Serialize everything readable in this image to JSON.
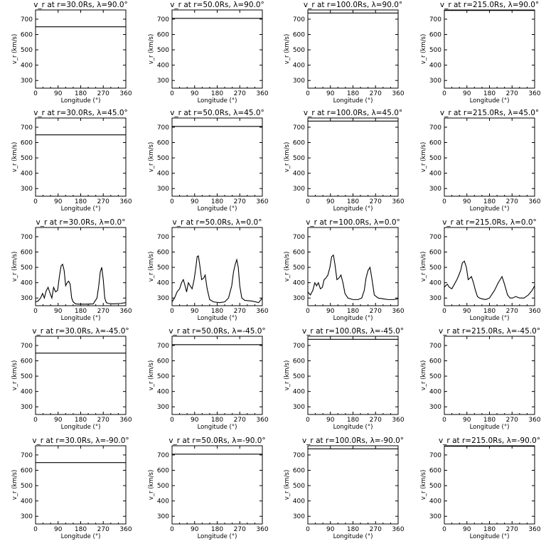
{
  "chart_data": {
    "type": "line",
    "layout": "small-multiples",
    "rows": 5,
    "cols": 4,
    "xlim": [
      0,
      360
    ],
    "ylim": [
      250,
      760
    ],
    "xticks": [
      0,
      90,
      180,
      270,
      360
    ],
    "yticks": [
      300,
      400,
      500,
      600,
      700
    ],
    "xlabel": "Longitude (°)",
    "ylabel": "v_r (km/s)",
    "grid": false,
    "radii": [
      "30.0",
      "50.0",
      "100.0",
      "215.0"
    ],
    "latitudes": [
      "90.0",
      "45.0",
      "0.0",
      "-45.0",
      "-90.0"
    ],
    "panels": [
      {
        "title": "v_r at r=30.0Rs,  λ=90.0°",
        "x": [
          0,
          360
        ],
        "y": [
          650,
          650
        ]
      },
      {
        "title": "v_r at r=50.0Rs,  λ=90.0°",
        "x": [
          0,
          360
        ],
        "y": [
          705,
          705
        ]
      },
      {
        "title": "v_r at r=100.0Rs,  λ=90.0°",
        "x": [
          0,
          360
        ],
        "y": [
          740,
          740
        ]
      },
      {
        "title": "v_r at r=215.0Rs,  λ=90.0°",
        "x": [
          0,
          360
        ],
        "y": [
          757,
          757
        ]
      },
      {
        "title": "v_r at r=30.0Rs,  λ=45.0°",
        "x": [
          0,
          360
        ],
        "y": [
          650,
          650
        ]
      },
      {
        "title": "v_r at r=50.0Rs,  λ=45.0°",
        "x": [
          0,
          360
        ],
        "y": [
          705,
          705
        ]
      },
      {
        "title": "v_r at r=100.0Rs,  λ=45.0°",
        "x": [
          0,
          360
        ],
        "y": [
          740,
          740
        ]
      },
      {
        "title": "v_r at r=215.0Rs,  λ=45.0°",
        "x": [],
        "y": []
      },
      {
        "title": "v_r at r=30.0Rs,  λ=0.0°",
        "x": [
          0,
          10,
          20,
          28,
          35,
          42,
          50,
          58,
          65,
          72,
          80,
          88,
          95,
          102,
          108,
          114,
          120,
          126,
          132,
          138,
          144,
          150,
          160,
          175,
          200,
          230,
          245,
          252,
          258,
          264,
          270,
          276,
          282,
          290,
          310,
          340,
          360
        ],
        "y": [
          275,
          280,
          300,
          330,
          300,
          345,
          370,
          330,
          300,
          370,
          340,
          350,
          440,
          510,
          520,
          480,
          380,
          400,
          410,
          390,
          300,
          275,
          262,
          260,
          260,
          262,
          300,
          380,
          470,
          500,
          420,
          300,
          270,
          265,
          262,
          265,
          270
        ]
      },
      {
        "title": "v_r at r=50.0Rs,  λ=0.0°",
        "x": [
          0,
          10,
          20,
          30,
          38,
          45,
          52,
          58,
          65,
          72,
          80,
          88,
          95,
          100,
          105,
          110,
          118,
          126,
          132,
          140,
          150,
          165,
          190,
          210,
          225,
          238,
          245,
          252,
          258,
          264,
          270,
          278,
          290,
          320,
          345,
          360
        ],
        "y": [
          275,
          300,
          340,
          360,
          400,
          420,
          380,
          340,
          400,
          380,
          360,
          420,
          500,
          570,
          575,
          520,
          420,
          430,
          450,
          360,
          290,
          275,
          270,
          275,
          300,
          380,
          470,
          520,
          550,
          500,
          380,
          300,
          285,
          280,
          270,
          300
        ]
      },
      {
        "title": "v_r at r=100.0Rs,  λ=0.0°",
        "x": [
          0,
          5,
          10,
          20,
          28,
          35,
          42,
          50,
          58,
          65,
          72,
          80,
          88,
          95,
          102,
          108,
          116,
          124,
          132,
          140,
          148,
          160,
          180,
          200,
          215,
          225,
          232,
          240,
          248,
          256,
          265,
          280,
          300,
          320,
          340,
          360
        ],
        "y": [
          340,
          330,
          320,
          350,
          400,
          380,
          400,
          360,
          370,
          420,
          430,
          450,
          500,
          570,
          580,
          520,
          420,
          430,
          450,
          400,
          330,
          300,
          290,
          290,
          300,
          350,
          430,
          480,
          500,
          420,
          320,
          300,
          295,
          290,
          290,
          295
        ]
      },
      {
        "title": "v_r at r=215.0Rs,  λ=0.0°",
        "x": [
          0,
          5,
          12,
          20,
          30,
          40,
          50,
          58,
          65,
          72,
          80,
          88,
          95,
          102,
          108,
          116,
          124,
          132,
          140,
          150,
          165,
          180,
          200,
          215,
          230,
          240,
          252,
          262,
          272,
          285,
          300,
          318,
          335,
          350,
          360
        ],
        "y": [
          370,
          380,
          390,
          370,
          360,
          390,
          420,
          450,
          480,
          530,
          540,
          500,
          420,
          430,
          440,
          400,
          350,
          310,
          300,
          295,
          290,
          300,
          350,
          400,
          440,
          390,
          320,
          300,
          300,
          310,
          300,
          300,
          320,
          350,
          380
        ]
      },
      {
        "title": "v_r at r=30.0Rs,  λ=-45.0°",
        "x": [
          0,
          360
        ],
        "y": [
          650,
          650
        ]
      },
      {
        "title": "v_r at r=50.0Rs,  λ=-45.0°",
        "x": [
          0,
          360
        ],
        "y": [
          705,
          705
        ]
      },
      {
        "title": "v_r at r=100.0Rs,  λ=-45.0°",
        "x": [
          0,
          360
        ],
        "y": [
          740,
          740
        ]
      },
      {
        "title": "v_r at r=215.0Rs,  λ=-45.0°",
        "x": [],
        "y": []
      },
      {
        "title": "v_r at r=30.0Rs,  λ=-90.0°",
        "x": [
          0,
          360
        ],
        "y": [
          650,
          650
        ]
      },
      {
        "title": "v_r at r=50.0Rs,  λ=-90.0°",
        "x": [
          0,
          360
        ],
        "y": [
          705,
          705
        ]
      },
      {
        "title": "v_r at r=100.0Rs,  λ=-90.0°",
        "x": [
          0,
          360
        ],
        "y": [
          740,
          740
        ]
      },
      {
        "title": "v_r at r=215.0Rs,  λ=-90.0°",
        "x": [
          0,
          360
        ],
        "y": [
          757,
          757
        ]
      }
    ]
  }
}
